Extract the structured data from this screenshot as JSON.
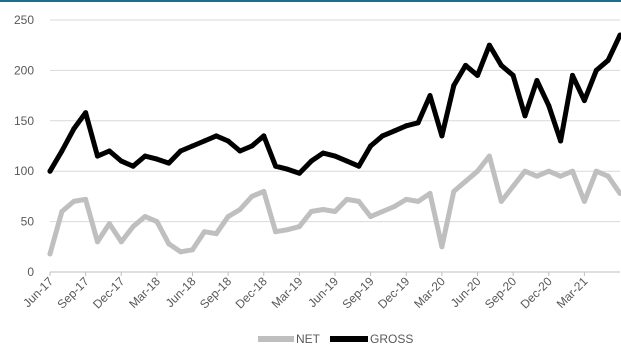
{
  "colors": {
    "top_rule": "#1F6E8C",
    "net": "#BFBFBF",
    "gross": "#000000",
    "grid": "#D9D9D9",
    "axis": "#BFBFBF",
    "text": "#595959"
  },
  "chart_data": {
    "type": "line",
    "title": "",
    "xlabel": "",
    "ylabel": "",
    "ylim": [
      0,
      250
    ],
    "y_ticks": [
      "0",
      "50",
      "100",
      "150",
      "200",
      "250"
    ],
    "x_ticks": [
      "Jun-17",
      "Sep-17",
      "Dec-17",
      "Mar-18",
      "Jun-18",
      "Sep-18",
      "Dec-18",
      "Mar-19",
      "Jun-19",
      "Sep-19",
      "Dec-19",
      "Mar-20",
      "Jun-20",
      "Sep-20",
      "Dec-20",
      "Mar-21"
    ],
    "grid": true,
    "legend_position": "bottom",
    "x": [
      "2017-06",
      "2017-07",
      "2017-08",
      "2017-09",
      "2017-10",
      "2017-11",
      "2017-12",
      "2018-01",
      "2018-02",
      "2018-03",
      "2018-04",
      "2018-05",
      "2018-06",
      "2018-07",
      "2018-08",
      "2018-09",
      "2018-10",
      "2018-11",
      "2018-12",
      "2019-01",
      "2019-02",
      "2019-03",
      "2019-04",
      "2019-05",
      "2019-06",
      "2019-07",
      "2019-08",
      "2019-09",
      "2019-10",
      "2019-11",
      "2019-12",
      "2020-01",
      "2020-02",
      "2020-03",
      "2020-04",
      "2020-05",
      "2020-06",
      "2020-07",
      "2020-08",
      "2020-09",
      "2020-10",
      "2020-11",
      "2020-12",
      "2021-01",
      "2021-02",
      "2021-03",
      "2021-04",
      "2021-05",
      "2021-06"
    ],
    "series": [
      {
        "name": "NET",
        "color": "#BFBFBF",
        "values": [
          18,
          60,
          70,
          72,
          30,
          48,
          30,
          45,
          55,
          50,
          28,
          20,
          22,
          40,
          38,
          55,
          62,
          75,
          80,
          40,
          42,
          45,
          60,
          62,
          60,
          72,
          70,
          55,
          60,
          65,
          72,
          70,
          78,
          25,
          80,
          90,
          100,
          115,
          70,
          85,
          100,
          95,
          100,
          95,
          100,
          70,
          100,
          95,
          78
        ]
      },
      {
        "name": "GROSS",
        "color": "#000000",
        "values": [
          100,
          120,
          142,
          158,
          115,
          120,
          110,
          105,
          115,
          112,
          108,
          120,
          125,
          130,
          135,
          130,
          120,
          125,
          135,
          105,
          102,
          98,
          110,
          118,
          115,
          110,
          105,
          125,
          135,
          140,
          145,
          148,
          175,
          135,
          185,
          205,
          195,
          225,
          205,
          195,
          155,
          190,
          165,
          130,
          195,
          170,
          200,
          210,
          235
        ]
      }
    ]
  }
}
